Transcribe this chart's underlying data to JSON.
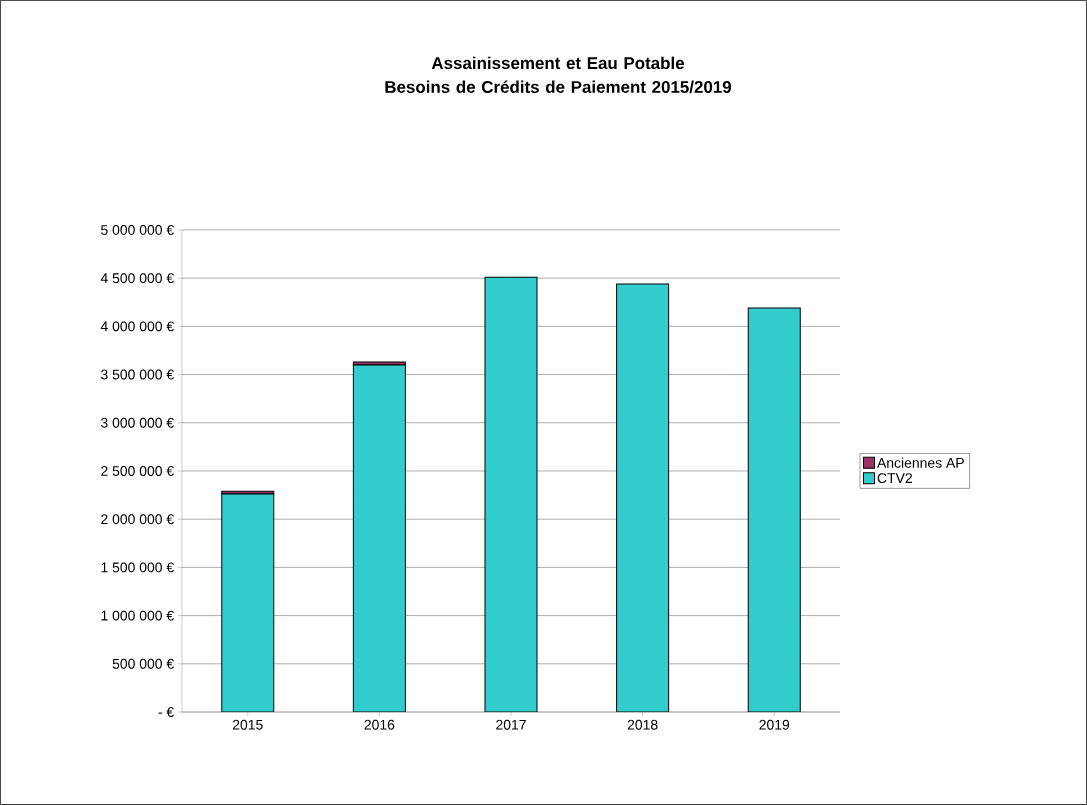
{
  "chart_data": {
    "type": "bar",
    "stacked": true,
    "title": "Assainissement et Eau Potable\nBesoins de Crédits de Paiement 2015/2019",
    "categories": [
      "2015",
      "2016",
      "2017",
      "2018",
      "2019"
    ],
    "series": [
      {
        "name": "CTV2",
        "color": "#33cccc",
        "values": [
          2260000,
          3600000,
          4510000,
          4440000,
          4190000
        ]
      },
      {
        "name": "Anciennes AP",
        "color": "#993366",
        "values": [
          30000,
          30000,
          0,
          0,
          0
        ]
      }
    ],
    "ylim": [
      0,
      5000000
    ],
    "yticks": [
      {
        "value": 0,
        "label": "-   €"
      },
      {
        "value": 500000,
        "label": "500 000 €"
      },
      {
        "value": 1000000,
        "label": "1 000 000 €"
      },
      {
        "value": 1500000,
        "label": "1 500 000 €"
      },
      {
        "value": 2000000,
        "label": "2 000 000 €"
      },
      {
        "value": 2500000,
        "label": "2 500 000 €"
      },
      {
        "value": 3000000,
        "label": "3 000 000 €"
      },
      {
        "value": 3500000,
        "label": "3 500 000 €"
      },
      {
        "value": 4000000,
        "label": "4 000 000 €"
      },
      {
        "value": 4500000,
        "label": "4 500 000 €"
      },
      {
        "value": 5000000,
        "label": "5 000 000 €"
      }
    ],
    "grid": "y",
    "legend": "right"
  }
}
